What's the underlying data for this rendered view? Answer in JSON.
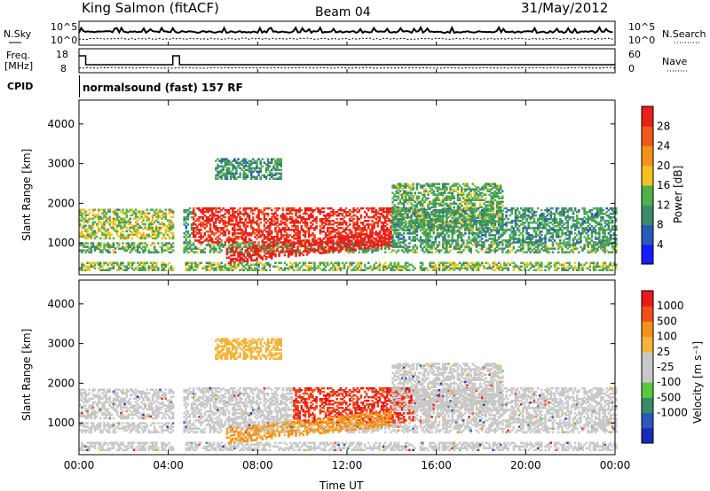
{
  "header": {
    "station": "King Salmon (fitACF)",
    "beam": "Beam 04",
    "date": "31/May/2012"
  },
  "nsky_panel": {
    "left_label": "N.Sky",
    "right_label": "N.Search",
    "left_ticks": [
      "10^5",
      "10^0"
    ],
    "right_ticks": [
      "10^5",
      "10^0"
    ]
  },
  "freq_panel": {
    "left_label": [
      "Freq.",
      "[MHz]"
    ],
    "right_label": "Nave",
    "left_ticks": [
      "18",
      "8"
    ],
    "right_ticks": [
      "60",
      "0"
    ]
  },
  "cpid": {
    "label": "CPID",
    "program": "normalsound (fast) 157 RF"
  },
  "colors": {
    "power_scale": [
      "#1a1aff",
      "#2a5ab8",
      "#3d8a6a",
      "#4fb04a",
      "#f3c21c",
      "#f5901a",
      "#f05a18",
      "#e8201a"
    ],
    "velocity_scale": [
      "#e81a1a",
      "#f0501a",
      "#f5901c",
      "#f4b43a",
      "#c8c8c8",
      "#c8c8c8",
      "#5ac83a",
      "#3a8a6a",
      "#2a5ab8",
      "#1a2ab8"
    ]
  },
  "chart_data": [
    {
      "type": "heatmap",
      "name": "power",
      "ylabel": "Slant Range [km]",
      "yticks": [
        "1000",
        "2000",
        "3000",
        "4000"
      ],
      "ylim": [
        200,
        4600
      ],
      "xlim": [
        0,
        24
      ],
      "colorbar_label": "Power [dB]",
      "colorbar_ticks": [
        "4",
        "8",
        "12",
        "16",
        "20",
        "24",
        "28"
      ],
      "colorbar_range": [
        0,
        32
      ]
    },
    {
      "type": "heatmap",
      "name": "velocity",
      "ylabel": "Slant Range [km]",
      "yticks": [
        "1000",
        "2000",
        "3000",
        "4000"
      ],
      "ylim": [
        200,
        4600
      ],
      "xlim": [
        0,
        24
      ],
      "colorbar_label": "Velocity [m s⁻¹]",
      "colorbar_ticks": [
        "1000",
        "500",
        "100",
        "25",
        "-25",
        "-100",
        "-500",
        "-1000"
      ]
    }
  ],
  "xaxis": {
    "ticks": [
      "00:00",
      "04:00",
      "08:00",
      "12:00",
      "16:00",
      "20:00",
      "00:00"
    ],
    "label": "Time UT"
  }
}
